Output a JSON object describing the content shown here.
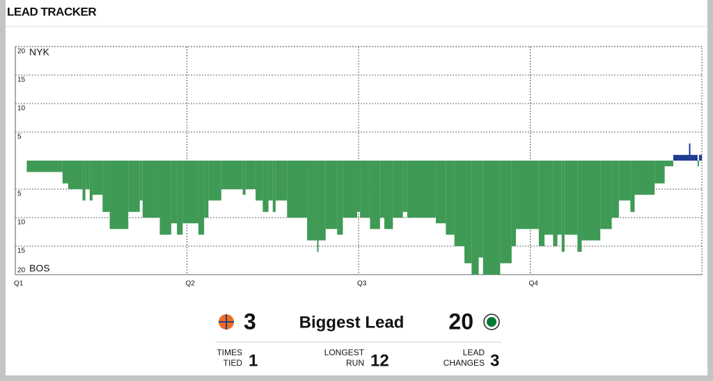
{
  "header": {
    "title": "LEAD TRACKER"
  },
  "chart_data": {
    "type": "step-area",
    "top_team": "NYK",
    "bottom_team": "BOS",
    "positive_color": "#1f3d8f",
    "negative_color": "#3f9a55",
    "xlim": [
      0,
      48
    ],
    "ylim": [
      -20,
      20
    ],
    "xticks": [
      {
        "value": 0,
        "label": "Q1"
      },
      {
        "value": 12,
        "label": "Q2"
      },
      {
        "value": 24,
        "label": "Q3"
      },
      {
        "value": 36,
        "label": "Q4"
      }
    ],
    "yticks": [
      20,
      15,
      10,
      5,
      {
        "value": -5,
        "label": "5"
      },
      {
        "value": -10,
        "label": "10"
      },
      {
        "value": -15,
        "label": "15"
      },
      {
        "value": -20,
        "label": "20"
      }
    ],
    "grid": true,
    "x": [
      0,
      0.8,
      3.3,
      3.7,
      4.7,
      4.9,
      5.2,
      5.4,
      6.1,
      6.6,
      7.9,
      8.7,
      8.9,
      10.1,
      10.9,
      11.3,
      11.7,
      12.8,
      13.2,
      13.5,
      14.4,
      15.9,
      16.1,
      16.8,
      17.3,
      17.7,
      18.0,
      18.2,
      19.0,
      20.4,
      21.1,
      21.2,
      21.7,
      22.5,
      22.9,
      23.9,
      24.1,
      24.8,
      25.5,
      25.8,
      26.4,
      27.1,
      27.4,
      29.4,
      30.1,
      30.7,
      31.4,
      31.9,
      32.4,
      32.7,
      33.9,
      34.7,
      35.0,
      36.6,
      37.0,
      37.6,
      37.9,
      38.2,
      38.4,
      39.3,
      39.6,
      40.9,
      41.7,
      42.2,
      43.0,
      43.3,
      44.7,
      45.4,
      46.0,
      47.1,
      47.2,
      47.7,
      47.8
    ],
    "values": [
      0,
      -2,
      -4,
      -5,
      -7,
      -5,
      -7,
      -6,
      -9,
      -12,
      -9,
      -7,
      -10,
      -13,
      -11,
      -13,
      -11,
      -13,
      -10,
      -7,
      -5,
      -6,
      -5,
      -7,
      -9,
      -7,
      -9,
      -7,
      -10,
      -14,
      -16,
      -14,
      -12,
      -13,
      -10,
      -9,
      -10,
      -12,
      -10,
      -12,
      -10,
      -9,
      -10,
      -11,
      -13,
      -15,
      -18,
      -20,
      -17,
      -20,
      -18,
      -15,
      -12,
      -15,
      -13,
      -15,
      -13,
      -16,
      -13,
      -16,
      -14,
      -12,
      -10,
      -7,
      -9,
      -6,
      -4,
      -1,
      1,
      3,
      1,
      -1,
      1
    ]
  },
  "summary": {
    "title": "Biggest Lead",
    "left_value": 3,
    "right_value": 20,
    "stats": [
      {
        "label": [
          "TIMES",
          "TIED"
        ],
        "value": 1
      },
      {
        "label": [
          "LONGEST",
          "RUN"
        ],
        "value": 12
      },
      {
        "label": [
          "LEAD",
          "CHANGES"
        ],
        "value": 3
      }
    ]
  }
}
